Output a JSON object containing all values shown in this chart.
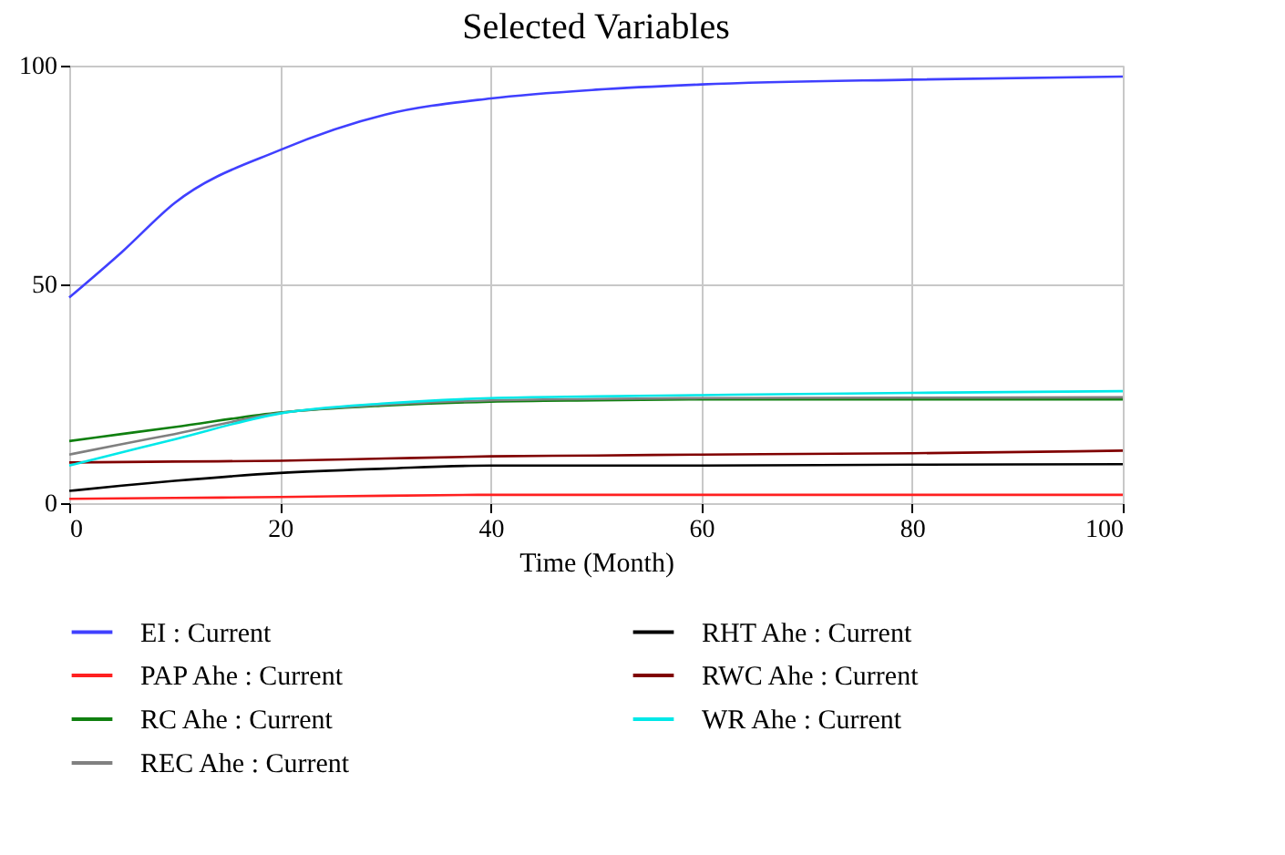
{
  "chart_data": {
    "type": "line",
    "title": "Selected Variables",
    "xlabel": "Time (Month)",
    "xlim": [
      0,
      100
    ],
    "xticks": [
      0,
      20,
      40,
      60,
      80,
      100
    ],
    "ylim": [
      0,
      100
    ],
    "yticks": [
      0,
      50,
      100
    ],
    "grid": true,
    "legend": "bottom",
    "marker": "none",
    "line_style": "solid",
    "x": [
      0,
      5,
      10,
      20,
      30,
      40,
      50,
      60,
      80,
      100
    ],
    "series": [
      {
        "name": "EI : Current",
        "color": "#4040ff",
        "values": [
          47,
          57.4,
          68.6,
          80.7,
          88.8,
          92.5,
          94.5,
          95.7,
          96.8,
          97.5
        ]
      },
      {
        "name": "PAP Ahe : Current",
        "color": "#ff2020",
        "values": [
          1.0,
          1.1,
          1.2,
          1.4,
          1.7,
          1.9,
          1.9,
          1.9,
          1.9,
          1.9
        ]
      },
      {
        "name": "RC Ahe : Current",
        "color": "#108010",
        "values": [
          14.2,
          15.8,
          17.4,
          20.7,
          22.3,
          23.2,
          23.5,
          23.7,
          23.7,
          23.7
        ]
      },
      {
        "name": "REC Ahe : Current",
        "color": "#808080",
        "values": [
          11.1,
          13.5,
          15.8,
          20.6,
          22.5,
          23.5,
          23.8,
          24.0,
          24.1,
          24.2
        ]
      },
      {
        "name": "RHT Ahe : Current",
        "color": "#000000",
        "values": [
          2.8,
          4.0,
          5.1,
          6.9,
          7.9,
          8.6,
          8.6,
          8.6,
          8.8,
          8.9
        ]
      },
      {
        "name": "RWC Ahe : Current",
        "color": "#800000",
        "values": [
          9.3,
          9.4,
          9.5,
          9.7,
          10.2,
          10.7,
          10.9,
          11.1,
          11.4,
          12.0
        ]
      },
      {
        "name": "WR Ahe : Current",
        "color": "#00e8e8",
        "values": [
          8.6,
          11.6,
          14.6,
          20.5,
          22.8,
          24.0,
          24.4,
          24.7,
          25.2,
          25.6
        ]
      }
    ]
  }
}
